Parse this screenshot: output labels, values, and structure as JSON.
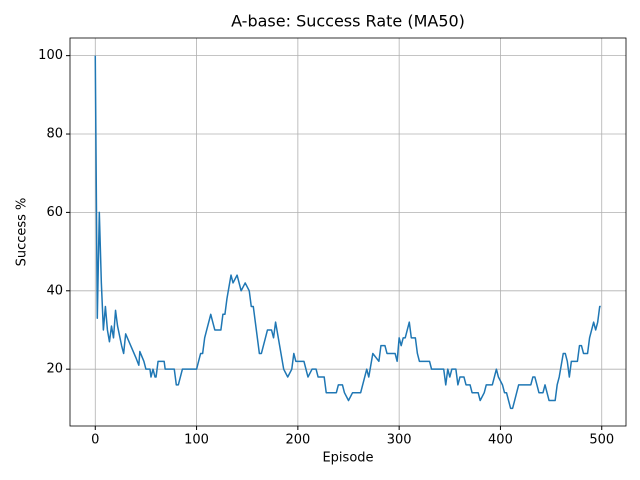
{
  "chart_data": {
    "type": "line",
    "title": "A-base: Success Rate (MA50)",
    "x_label": "Episode",
    "y_label": "Success %",
    "color": "#1f77b4",
    "grid": true,
    "xlim": [
      -24.95,
      523.95
    ],
    "ylim": [
      5.5,
      104.5
    ],
    "xticks": [
      0,
      100,
      200,
      300,
      400,
      500
    ],
    "yticks": [
      20,
      40,
      60,
      80,
      100
    ],
    "x": [
      0,
      2,
      4,
      6,
      8,
      10,
      12,
      14,
      16,
      18,
      20,
      22,
      26,
      28,
      30,
      35,
      40,
      43,
      44,
      48,
      50,
      54,
      55,
      57,
      59,
      60,
      62,
      68,
      69,
      78,
      80,
      82,
      84,
      86,
      100,
      102,
      104,
      106,
      108,
      110,
      112,
      114,
      116,
      118,
      124,
      126,
      128,
      130,
      134,
      136,
      140,
      142,
      144,
      148,
      152,
      154,
      156,
      158,
      162,
      164,
      168,
      170,
      174,
      176,
      178,
      182,
      186,
      190,
      194,
      196,
      198,
      206,
      210,
      214,
      218,
      220,
      226,
      228,
      238,
      240,
      244,
      246,
      250,
      254,
      262,
      264,
      268,
      270,
      274,
      280,
      282,
      286,
      288,
      296,
      298,
      300,
      302,
      304,
      306,
      308,
      310,
      312,
      316,
      318,
      320,
      330,
      332,
      344,
      346,
      348,
      350,
      352,
      356,
      358,
      360,
      364,
      366,
      370,
      372,
      378,
      380,
      384,
      386,
      392,
      396,
      398,
      402,
      404,
      406,
      408,
      410,
      412,
      414,
      416,
      418,
      430,
      432,
      434,
      436,
      438,
      442,
      444,
      446,
      448,
      454,
      456,
      458,
      462,
      464,
      466,
      468,
      470,
      476,
      478,
      480,
      482,
      486,
      488,
      492,
      494,
      496,
      498,
      499
    ],
    "values": [
      100,
      33,
      60,
      42,
      30,
      36,
      30,
      27,
      31,
      28,
      35,
      31,
      26,
      24,
      29,
      26,
      23,
      21,
      24.5,
      22,
      20,
      20,
      18,
      20,
      18,
      18,
      22,
      22,
      20,
      20,
      16,
      16,
      18,
      20,
      20,
      22,
      24,
      24,
      28,
      30,
      32,
      34,
      32,
      30,
      30,
      34,
      34,
      38,
      44,
      42,
      44,
      42,
      40,
      42,
      40,
      36,
      36,
      32,
      24,
      24,
      28,
      30,
      30,
      28,
      32,
      26,
      20,
      18,
      20,
      24,
      22,
      22,
      18,
      20,
      20,
      18,
      18,
      14,
      14,
      16,
      16,
      14,
      12,
      14,
      14,
      16,
      20,
      18,
      24,
      22,
      26,
      26,
      24,
      24,
      22,
      28,
      26,
      28,
      28,
      30,
      32,
      28,
      28,
      24,
      22,
      22,
      20,
      20,
      16,
      20,
      18,
      20,
      20,
      16,
      18,
      18,
      16,
      16,
      14,
      14,
      12,
      14,
      16,
      16,
      20,
      18,
      16,
      14,
      14,
      12,
      10,
      10,
      12,
      14,
      16,
      16,
      18,
      18,
      16,
      14,
      14,
      16,
      14,
      12,
      12,
      16,
      18,
      24,
      24,
      22,
      18,
      22,
      22,
      26,
      26,
      24,
      24,
      28,
      32,
      30,
      32,
      36,
      36
    ]
  }
}
